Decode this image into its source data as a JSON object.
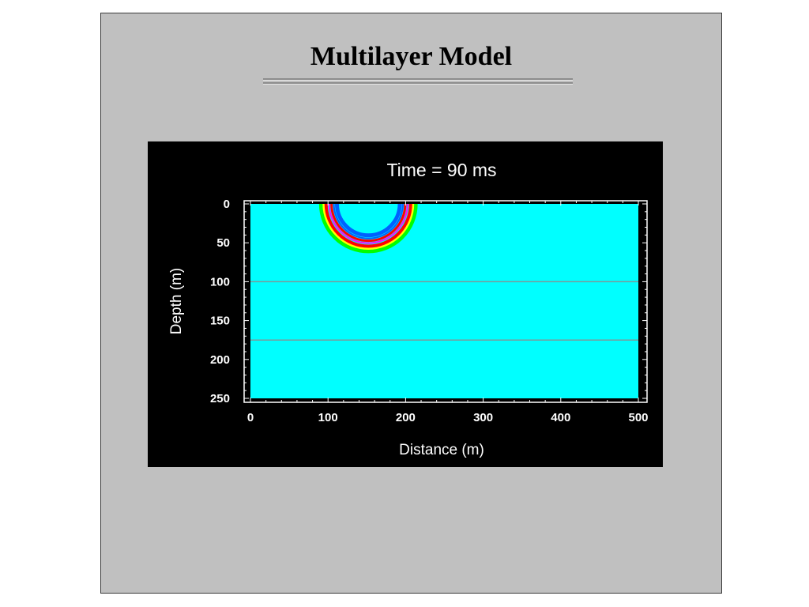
{
  "slide": {
    "title": "Multilayer Model"
  },
  "colors": {
    "slide_background": "#c0c0c0",
    "figure_background": "#000000",
    "model_fill": "#00ffff",
    "interface_line": "#7a9a9a",
    "wavefront_colors": [
      "#0060ff",
      "#00ff00",
      "#ffff00",
      "#ff0000",
      "#ff00ff"
    ]
  },
  "chart_data": {
    "type": "heatmap",
    "title": "Time = 90 ms",
    "xlabel": "Distance (m)",
    "ylabel": "Depth (m)",
    "xlim": [
      0,
      500
    ],
    "ylim": [
      0,
      250
    ],
    "y_inverted": true,
    "x_ticks": [
      "0",
      "100",
      "200",
      "300",
      "400",
      "500"
    ],
    "y_ticks": [
      "0",
      "50",
      "100",
      "150",
      "200",
      "250"
    ],
    "layer_interfaces_depth": [
      100,
      175
    ],
    "source": {
      "x": 152,
      "z": 0
    },
    "wavefront_radius": 60,
    "grid": false
  }
}
